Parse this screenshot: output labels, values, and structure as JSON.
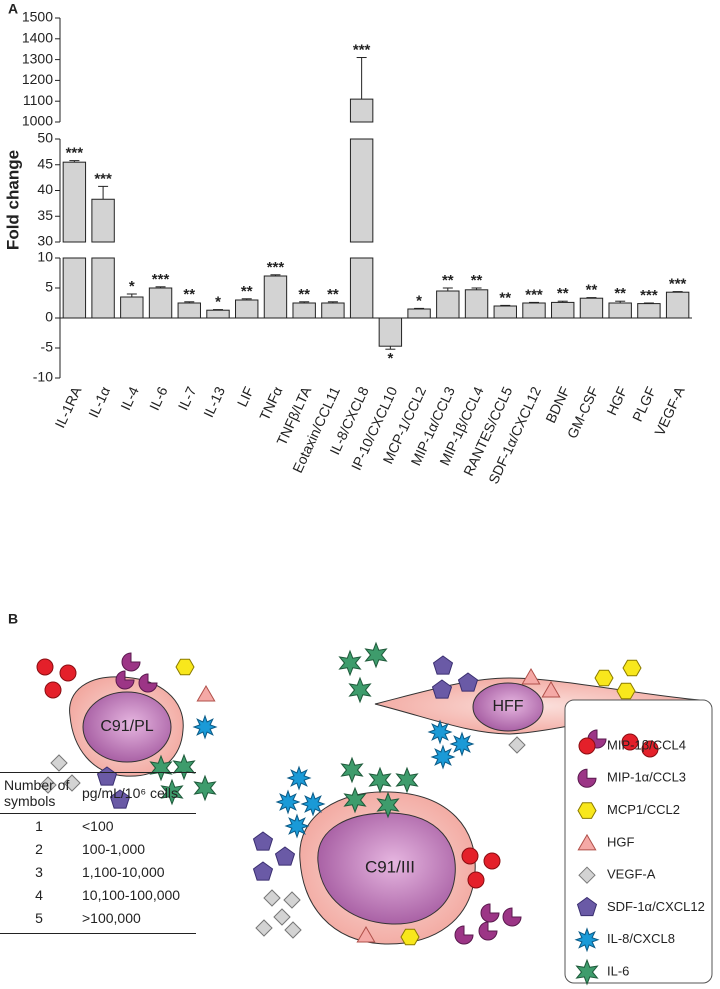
{
  "chart_data": {
    "type": "bar",
    "panel_label": "A",
    "ylabel": "Fold change",
    "categories": [
      "IL-1RA",
      "IL-1α",
      "IL-4",
      "IL-6",
      "IL-7",
      "IL-13",
      "LIF",
      "TNFα",
      "TNFβ/LTA",
      "Eotaxin/CCL11",
      "IL-8/CXCL8",
      "IP-10/CXCL10",
      "MCP-1/CCL2",
      "MIP-1α/CCL3",
      "MIP-1β/CCL4",
      "RANTES/CCL5",
      "SDF-1α/CXCL12",
      "BDNF",
      "GM-CSF",
      "HGF",
      "PLGF",
      "VEGF-A"
    ],
    "values": [
      45.5,
      38.3,
      3.5,
      5,
      2.5,
      1.3,
      3,
      7,
      2.5,
      2.5,
      1110,
      -4.7,
      1.5,
      4.5,
      4.7,
      2,
      2.5,
      2.6,
      3.3,
      2.5,
      2.4,
      4.3
    ],
    "errors": [
      0.3,
      2.5,
      0.5,
      0.2,
      0.2,
      0.1,
      0.2,
      0.2,
      0.2,
      0.2,
      200,
      0.5,
      0.1,
      0.5,
      0.3,
      0.1,
      0.1,
      0.2,
      0.1,
      0.3,
      0.1,
      0.1
    ],
    "annotations": [
      "***",
      "***",
      "*",
      "***",
      "**",
      "*",
      "**",
      "***",
      "**",
      "**",
      "***",
      "*",
      "*",
      "**",
      "**",
      "**",
      "***",
      "**",
      "**",
      "**",
      "***",
      "***"
    ],
    "color": "#d3d3d3",
    "y_segments": [
      {
        "ylim": [
          -10,
          10
        ],
        "yticks": [
          -10,
          -5,
          0,
          5,
          10
        ]
      },
      {
        "ylim": [
          30,
          50
        ],
        "yticks": [
          30,
          35,
          40,
          45,
          50
        ]
      },
      {
        "ylim": [
          1000,
          1500
        ],
        "yticks": [
          1000,
          1100,
          1200,
          1300,
          1400,
          1500
        ]
      }
    ]
  },
  "diagram": {
    "panel_label": "B",
    "cells": [
      {
        "label": "C91/PL"
      },
      {
        "label": "HFF"
      },
      {
        "label": "C91/III"
      }
    ],
    "legend": [
      "MIP-1β/CCL4",
      "MIP-1α/CCL3",
      "MCP1/CCL2",
      "HGF",
      "VEGF-A",
      "SDF-1α/CXCL12",
      "IL-8/CXCL8",
      "IL-6"
    ],
    "table": {
      "header": [
        "Number of symbols",
        "pg/mL/10⁶ cells"
      ],
      "rows": [
        [
          "1",
          "<100"
        ],
        [
          "2",
          "100-1,000"
        ],
        [
          "3",
          "1,100-10,000"
        ],
        [
          "4",
          "10,100-100,000"
        ],
        [
          "5",
          ">100,000"
        ]
      ]
    }
  }
}
